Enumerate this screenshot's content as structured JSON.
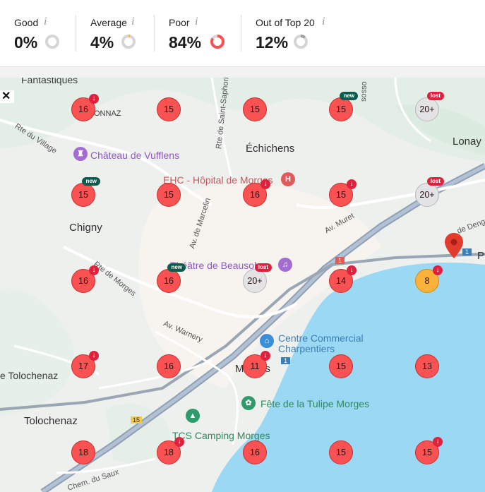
{
  "stats": [
    {
      "label": "Good",
      "info": "i",
      "value": "0%",
      "percent": 0,
      "color": "#4caf50"
    },
    {
      "label": "Average",
      "info": "i",
      "value": "4%",
      "percent": 4,
      "color": "#fbb13a"
    },
    {
      "label": "Poor",
      "info": "i",
      "value": "84%",
      "percent": 84,
      "color": "#fa5252"
    },
    {
      "label": "Out of Top 20",
      "info": "i",
      "value": "12%",
      "percent": 12,
      "color": "#9e9e9e"
    }
  ],
  "map": {
    "close_label": "✕",
    "places": {
      "fantastiques": "Fantastiques",
      "vonnaz": "ONNAZ",
      "echichens": "Échichens",
      "lonay": "Lonay",
      "chigny": "Chigny",
      "tolochenaz_left": "e Tolochenaz",
      "tolochenaz": "Tolochenaz",
      "morges": "Morges",
      "p": "P"
    },
    "pois": {
      "chateau": "Château de Vufflens",
      "hopital": "EHC - Hôpital de Morges",
      "theatre": "Théâtre de Beausobre",
      "centre1": "Centre Commercial",
      "centre2": "Charpentiers",
      "tulipe": "Fête de la Tulipe Morges",
      "camping": "TCS Camping Morges"
    },
    "streets": {
      "village": "Rte du Village",
      "saint": "Rte de Saint-Saphorin",
      "marcelin": "Av. de Marcelin",
      "muret": "Av. Muret",
      "morges": "Rte de Morges",
      "warnery": "Av. Warnery",
      "saux": "Chem. du Saux",
      "denges": "de Denges",
      "sossonne": "sosso"
    },
    "shields": {
      "a": "1",
      "b": "1",
      "c": "15",
      "d": "1"
    },
    "grid": [
      {
        "rank": "16",
        "color": "red",
        "marker": "down"
      },
      {
        "rank": "15",
        "color": "red",
        "marker": ""
      },
      {
        "rank": "15",
        "color": "red",
        "marker": ""
      },
      {
        "rank": "15",
        "color": "red",
        "marker": "new"
      },
      {
        "rank": "20+",
        "color": "grey",
        "marker": "lost"
      },
      {
        "rank": "15",
        "color": "red",
        "marker": "new"
      },
      {
        "rank": "15",
        "color": "red",
        "marker": ""
      },
      {
        "rank": "16",
        "color": "red",
        "marker": "down"
      },
      {
        "rank": "15",
        "color": "red",
        "marker": "down"
      },
      {
        "rank": "20+",
        "color": "grey",
        "marker": "lost"
      },
      {
        "rank": "16",
        "color": "red",
        "marker": "down"
      },
      {
        "rank": "16",
        "color": "red",
        "marker": "new"
      },
      {
        "rank": "20+",
        "color": "grey",
        "marker": "lost"
      },
      {
        "rank": "14",
        "color": "red",
        "marker": "down"
      },
      {
        "rank": "8",
        "color": "orange",
        "marker": "down"
      },
      {
        "rank": "17",
        "color": "red",
        "marker": "down"
      },
      {
        "rank": "16",
        "color": "red",
        "marker": ""
      },
      {
        "rank": "11",
        "color": "red",
        "marker": "down"
      },
      {
        "rank": "15",
        "color": "red",
        "marker": ""
      },
      {
        "rank": "13",
        "color": "red",
        "marker": ""
      },
      {
        "rank": "18",
        "color": "red",
        "marker": ""
      },
      {
        "rank": "18",
        "color": "red",
        "marker": "down"
      },
      {
        "rank": "16",
        "color": "red",
        "marker": ""
      },
      {
        "rank": "15",
        "color": "red",
        "marker": ""
      },
      {
        "rank": "15",
        "color": "red",
        "marker": "down"
      }
    ],
    "marker_labels": {
      "new": "new",
      "lost": "lost",
      "down": "↓"
    }
  }
}
